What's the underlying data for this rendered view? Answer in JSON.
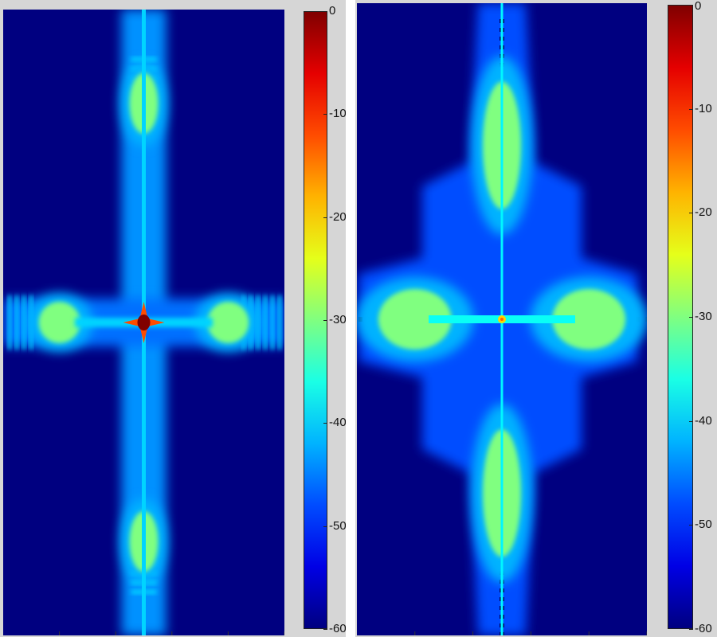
{
  "chart_data": [
    {
      "type": "heatmap",
      "title": "",
      "xlabel": "",
      "ylabel": "",
      "xlim": [
        0,
        100
      ],
      "ylim": [
        0,
        200
      ],
      "colormap": "jet",
      "colorbar": {
        "range": [
          -60,
          0
        ],
        "ticks": [
          {
            "value": 0,
            "label": "0"
          },
          {
            "value": -10,
            "label": "-10"
          },
          {
            "value": -20,
            "label": "-20"
          },
          {
            "value": -30,
            "label": "-30"
          },
          {
            "value": -40,
            "label": "-40"
          },
          {
            "value": -50,
            "label": "-50"
          },
          {
            "value": -60,
            "label": "-60"
          }
        ]
      },
      "peak": {
        "x": 50,
        "y": 100,
        "value_db": 0
      },
      "features": [
        {
          "kind": "lobe",
          "x": 50,
          "y": 30,
          "value_db": -30
        },
        {
          "kind": "lobe",
          "x": 50,
          "y": 170,
          "value_db": -30
        },
        {
          "kind": "lobe",
          "x": 20,
          "y": 100,
          "value_db": -30
        },
        {
          "kind": "lobe",
          "x": 80,
          "y": 100,
          "value_db": -30
        }
      ]
    },
    {
      "type": "heatmap",
      "title": "",
      "xlabel": "",
      "ylabel": "",
      "xlim": [
        0,
        100
      ],
      "ylim": [
        0,
        200
      ],
      "colormap": "jet",
      "colorbar": {
        "range": [
          -60,
          0
        ],
        "ticks": [
          {
            "value": 0,
            "label": "0"
          },
          {
            "value": -10,
            "label": "-10"
          },
          {
            "value": -20,
            "label": "-20"
          },
          {
            "value": -30,
            "label": "-30"
          },
          {
            "value": -40,
            "label": "-40"
          },
          {
            "value": -50,
            "label": "-50"
          },
          {
            "value": -60,
            "label": "-60"
          }
        ]
      },
      "peak": {
        "x": 50,
        "y": 100,
        "value_db": -20
      },
      "features": [
        {
          "kind": "lobe",
          "x": 50,
          "y": 45,
          "value_db": -30
        },
        {
          "kind": "lobe",
          "x": 50,
          "y": 155,
          "value_db": -30
        },
        {
          "kind": "lobe",
          "x": 20,
          "y": 100,
          "value_db": -30
        },
        {
          "kind": "lobe",
          "x": 80,
          "y": 100,
          "value_db": -30
        }
      ]
    }
  ]
}
